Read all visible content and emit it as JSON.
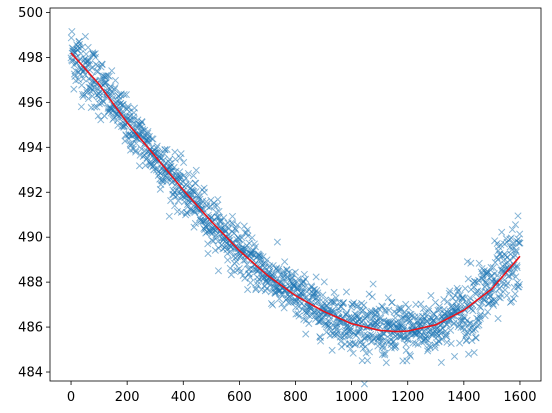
{
  "chart_data": {
    "type": "scatter",
    "title": "",
    "xlabel": "",
    "ylabel": "",
    "xlim": [
      -75,
      1675
    ],
    "ylim": [
      483.6,
      500.2
    ],
    "xticks": [
      0,
      200,
      400,
      600,
      800,
      1000,
      1200,
      1400,
      1600
    ],
    "yticks": [
      484,
      486,
      488,
      490,
      492,
      494,
      496,
      498,
      500
    ],
    "grid": false,
    "legend": "none",
    "scatter": {
      "marker": "x",
      "color": "#1f77b4",
      "alpha": 0.55,
      "x_range": [
        0,
        1600
      ],
      "n_points": 1600,
      "noise_sd_approx": 0.55
    },
    "fit_curve": {
      "color": "#e8141b",
      "x": [
        0,
        100,
        200,
        300,
        400,
        500,
        600,
        700,
        800,
        900,
        1000,
        1100,
        1160,
        1200,
        1300,
        1400,
        1500,
        1600
      ],
      "y": [
        498.2,
        496.8,
        495.1,
        493.6,
        492.1,
        490.7,
        489.4,
        488.3,
        487.4,
        486.7,
        486.15,
        485.85,
        485.8,
        485.82,
        486.1,
        486.75,
        487.7,
        489.15
      ]
    }
  }
}
